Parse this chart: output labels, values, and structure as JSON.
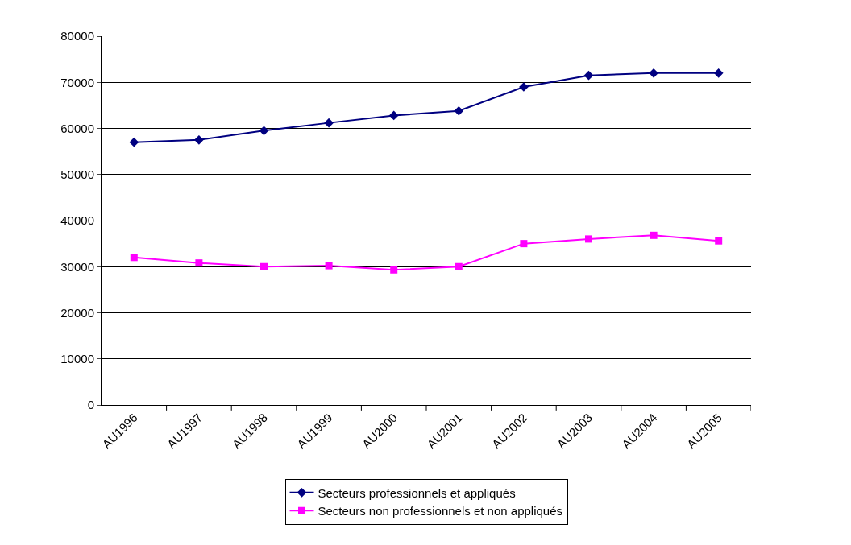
{
  "chart_data": {
    "type": "line",
    "categories": [
      "AU1996",
      "AU1997",
      "AU1998",
      "AU1999",
      "AU2000",
      "AU2001",
      "AU2002",
      "AU2003",
      "AU2004",
      "AU2005"
    ],
    "series": [
      {
        "name": "Secteurs professionnels et appliqués",
        "color": "#000080",
        "marker": "diamond",
        "values": [
          57000,
          57500,
          59500,
          61200,
          62800,
          63800,
          69000,
          71500,
          72000,
          72000
        ]
      },
      {
        "name": "Secteurs non professionnels et non appliqués",
        "color": "#ff00ff",
        "marker": "square",
        "values": [
          32000,
          30800,
          30000,
          30200,
          29300,
          30000,
          35000,
          36000,
          36800,
          35600
        ]
      }
    ],
    "ylim": [
      0,
      80000
    ],
    "yticks": [
      0,
      10000,
      20000,
      30000,
      40000,
      50000,
      60000,
      70000,
      80000
    ],
    "grid": "y",
    "legend": "bottom",
    "line_style": "solid"
  }
}
